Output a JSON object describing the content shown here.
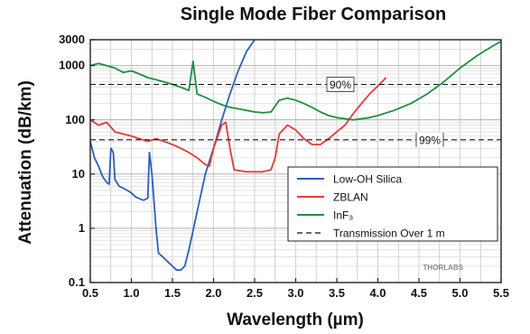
{
  "chart_data": {
    "type": "line",
    "title": "Single Mode Fiber Comparison",
    "xlabel": "Wavelength (µm)",
    "ylabel": "Attenuation (dB/km)",
    "xlim": [
      0.5,
      5.5
    ],
    "ylim": [
      0.1,
      3000
    ],
    "yscale": "log",
    "grid": true,
    "x_ticks": [
      "0.5",
      "1.0",
      "1.5",
      "2.0",
      "2.5",
      "3.0",
      "3.5",
      "4.0",
      "4.5",
      "5.0",
      "5.5"
    ],
    "y_ticks": [
      "3000",
      "1000",
      "100",
      "10",
      "1",
      "0.1"
    ],
    "legend_position": "lower-right",
    "series": [
      {
        "name": "Low-OH Silica",
        "color": "#2b5fb8",
        "points": [
          [
            0.5,
            40
          ],
          [
            0.55,
            20
          ],
          [
            0.6,
            14
          ],
          [
            0.65,
            9
          ],
          [
            0.7,
            7
          ],
          [
            0.73,
            6.5
          ],
          [
            0.75,
            30
          ],
          [
            0.78,
            25
          ],
          [
            0.8,
            8
          ],
          [
            0.85,
            6
          ],
          [
            0.9,
            5.5
          ],
          [
            0.95,
            5
          ],
          [
            1.0,
            4.5
          ],
          [
            1.05,
            3.8
          ],
          [
            1.1,
            3.5
          ],
          [
            1.15,
            3.3
          ],
          [
            1.2,
            3.6
          ],
          [
            1.22,
            25
          ],
          [
            1.25,
            10
          ],
          [
            1.3,
            1.0
          ],
          [
            1.33,
            0.35
          ],
          [
            1.4,
            0.28
          ],
          [
            1.5,
            0.2
          ],
          [
            1.55,
            0.17
          ],
          [
            1.6,
            0.17
          ],
          [
            1.65,
            0.2
          ],
          [
            1.7,
            0.4
          ],
          [
            1.8,
            2
          ],
          [
            1.9,
            10
          ],
          [
            2.0,
            30
          ],
          [
            2.1,
            100
          ],
          [
            2.2,
            300
          ],
          [
            2.3,
            800
          ],
          [
            2.4,
            1800
          ],
          [
            2.5,
            3000
          ]
        ]
      },
      {
        "name": "ZBLAN",
        "color": "#e43a3a",
        "points": [
          [
            0.5,
            100
          ],
          [
            0.6,
            80
          ],
          [
            0.7,
            90
          ],
          [
            0.8,
            60
          ],
          [
            0.9,
            55
          ],
          [
            1.0,
            50
          ],
          [
            1.1,
            45
          ],
          [
            1.2,
            40
          ],
          [
            1.3,
            45
          ],
          [
            1.4,
            40
          ],
          [
            1.5,
            35
          ],
          [
            1.6,
            30
          ],
          [
            1.7,
            25
          ],
          [
            1.8,
            20
          ],
          [
            1.9,
            15
          ],
          [
            1.95,
            14
          ],
          [
            2.0,
            30
          ],
          [
            2.1,
            80
          ],
          [
            2.15,
            90
          ],
          [
            2.2,
            30
          ],
          [
            2.25,
            12
          ],
          [
            2.4,
            11
          ],
          [
            2.6,
            11
          ],
          [
            2.7,
            12
          ],
          [
            2.75,
            20
          ],
          [
            2.8,
            55
          ],
          [
            2.9,
            80
          ],
          [
            3.0,
            65
          ],
          [
            3.1,
            45
          ],
          [
            3.2,
            35
          ],
          [
            3.3,
            35
          ],
          [
            3.4,
            45
          ],
          [
            3.5,
            60
          ],
          [
            3.6,
            80
          ],
          [
            3.7,
            130
          ],
          [
            3.8,
            200
          ],
          [
            3.9,
            300
          ],
          [
            4.0,
            420
          ],
          [
            4.1,
            600
          ]
        ]
      },
      {
        "name": "InF₃",
        "color": "#1e8f3e",
        "points": [
          [
            0.5,
            1000
          ],
          [
            0.6,
            1100
          ],
          [
            0.7,
            1000
          ],
          [
            0.8,
            900
          ],
          [
            0.9,
            750
          ],
          [
            1.0,
            800
          ],
          [
            1.1,
            700
          ],
          [
            1.2,
            600
          ],
          [
            1.3,
            550
          ],
          [
            1.4,
            500
          ],
          [
            1.5,
            450
          ],
          [
            1.6,
            400
          ],
          [
            1.7,
            350
          ],
          [
            1.75,
            1200
          ],
          [
            1.8,
            300
          ],
          [
            1.9,
            260
          ],
          [
            2.0,
            220
          ],
          [
            2.1,
            190
          ],
          [
            2.2,
            170
          ],
          [
            2.3,
            160
          ],
          [
            2.4,
            150
          ],
          [
            2.5,
            140
          ],
          [
            2.6,
            135
          ],
          [
            2.7,
            140
          ],
          [
            2.8,
            230
          ],
          [
            2.9,
            250
          ],
          [
            3.0,
            230
          ],
          [
            3.1,
            200
          ],
          [
            3.2,
            170
          ],
          [
            3.3,
            140
          ],
          [
            3.4,
            120
          ],
          [
            3.5,
            110
          ],
          [
            3.6,
            105
          ],
          [
            3.7,
            100
          ],
          [
            3.8,
            105
          ],
          [
            3.9,
            110
          ],
          [
            4.0,
            120
          ],
          [
            4.2,
            150
          ],
          [
            4.4,
            200
          ],
          [
            4.6,
            300
          ],
          [
            4.8,
            500
          ],
          [
            5.0,
            900
          ],
          [
            5.2,
            1500
          ],
          [
            5.4,
            2300
          ],
          [
            5.5,
            2800
          ]
        ]
      },
      {
        "name": "Transmission Over 1 m",
        "color": "#111111",
        "dashed": true,
        "lines": [
          {
            "label": "90%",
            "y": 450
          },
          {
            "label": "99%",
            "y": 43
          }
        ]
      }
    ]
  },
  "watermark": "THORLABS"
}
